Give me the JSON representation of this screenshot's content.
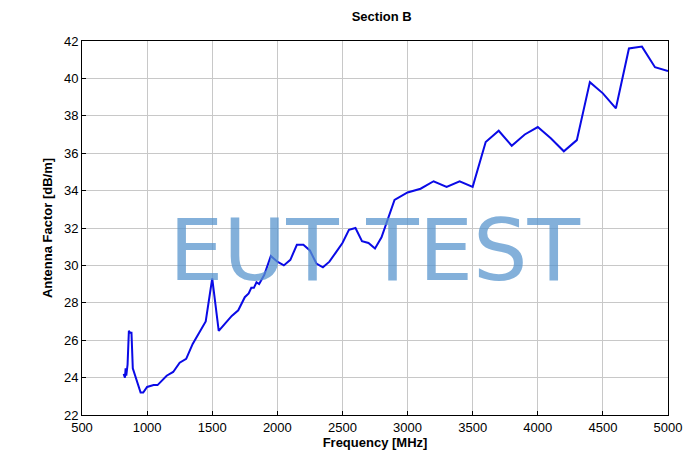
{
  "chart_data": {
    "type": "line",
    "title": "Section B",
    "x_label": "Frequency [MHz]",
    "y_label": "Antenna Factor [dB/m]",
    "annotations": [
      "EUT TEST"
    ],
    "color": "#0a0ae6",
    "grid": true,
    "xlim": [
      500,
      5000
    ],
    "xticks": [
      500,
      1000,
      1500,
      2000,
      2500,
      3000,
      3500,
      4000,
      4500,
      5000
    ],
    "ylim": [
      22,
      42
    ],
    "yticks": [
      22,
      24,
      26,
      28,
      30,
      32,
      34,
      36,
      38,
      40,
      42
    ],
    "x": [
      820,
      830,
      835,
      840,
      850,
      860,
      870,
      880,
      890,
      920,
      950,
      970,
      1000,
      1050,
      1080,
      1150,
      1200,
      1250,
      1300,
      1350,
      1450,
      1500,
      1550,
      1600,
      1650,
      1700,
      1750,
      1780,
      1800,
      1820,
      1840,
      1860,
      1900,
      1950,
      2000,
      2050,
      2100,
      2150,
      2200,
      2250,
      2300,
      2350,
      2400,
      2450,
      2500,
      2550,
      2600,
      2650,
      2700,
      2750,
      2800,
      2900,
      3000,
      3100,
      3200,
      3300,
      3400,
      3500,
      3600,
      3700,
      3800,
      3900,
      4000,
      4100,
      4200,
      4300,
      4400,
      4500,
      4600,
      4700,
      4800,
      4900,
      5000
    ],
    "values": [
      24.2,
      24.0,
      24.5,
      24.1,
      24.7,
      26.5,
      26.4,
      26.4,
      24.5,
      23.9,
      23.2,
      23.2,
      23.5,
      23.6,
      23.6,
      24.1,
      24.3,
      24.8,
      25.0,
      25.8,
      27.0,
      29.3,
      26.5,
      26.9,
      27.3,
      27.6,
      28.3,
      28.5,
      28.8,
      28.8,
      29.1,
      29.0,
      29.5,
      30.5,
      30.2,
      30.0,
      30.3,
      31.1,
      31.1,
      30.8,
      30.1,
      29.9,
      30.2,
      30.7,
      31.2,
      31.9,
      32.0,
      31.3,
      31.2,
      30.9,
      31.5,
      33.5,
      33.9,
      34.1,
      34.5,
      34.2,
      34.5,
      34.2,
      36.6,
      37.2,
      36.4,
      37.0,
      37.4,
      36.8,
      36.1,
      36.7,
      39.8,
      39.2,
      38.4,
      41.6,
      41.7,
      40.6,
      40.4
    ]
  }
}
